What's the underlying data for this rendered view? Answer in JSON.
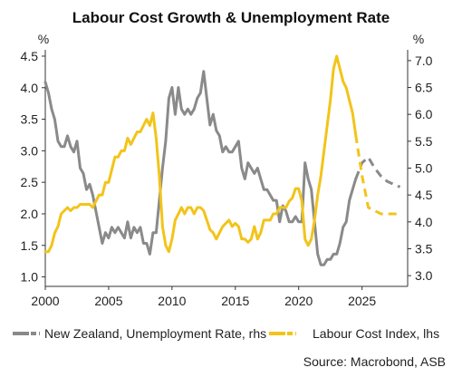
{
  "chart_data": {
    "type": "line",
    "title": "Labour Cost Growth & Unemployment Rate",
    "source": "Source: Macrobond, ASB",
    "left_axis": {
      "unit": "%",
      "ylim": [
        0.85,
        4.6
      ],
      "ticks": [
        "1.0",
        "1.5",
        "2.0",
        "2.5",
        "3.0",
        "3.5",
        "4.0",
        "4.5"
      ]
    },
    "right_axis": {
      "unit": "%",
      "ylim": [
        2.8,
        7.2
      ],
      "ticks": [
        "3.0",
        "3.5",
        "4.0",
        "4.5",
        "5.0",
        "5.5",
        "6.0",
        "6.5",
        "7.0"
      ]
    },
    "x_axis": {
      "xlim": [
        2000,
        2028.6
      ],
      "ticks": [
        "2000",
        "2005",
        "2010",
        "2015",
        "2020",
        "2025"
      ]
    },
    "grid": false,
    "legend_position": "bottom",
    "colors": {
      "unemployment": "#8a8a8a",
      "labour_cost": "#f2c41a"
    },
    "series": [
      {
        "name": "New Zealand, Unemployment Rate, rhs",
        "axis": "right",
        "color": "#8a8a8a",
        "actual": [
          [
            2000.0,
            6.6
          ],
          [
            2000.25,
            6.4
          ],
          [
            2000.5,
            6.1
          ],
          [
            2000.75,
            5.9
          ],
          [
            2001.0,
            5.5
          ],
          [
            2001.25,
            5.4
          ],
          [
            2001.5,
            5.4
          ],
          [
            2001.75,
            5.6
          ],
          [
            2002.0,
            5.4
          ],
          [
            2002.25,
            5.3
          ],
          [
            2002.5,
            5.5
          ],
          [
            2002.75,
            5.0
          ],
          [
            2003.0,
            4.9
          ],
          [
            2003.25,
            4.6
          ],
          [
            2003.5,
            4.7
          ],
          [
            2003.75,
            4.5
          ],
          [
            2004.0,
            4.2
          ],
          [
            2004.25,
            3.9
          ],
          [
            2004.5,
            3.6
          ],
          [
            2004.75,
            3.8
          ],
          [
            2005.0,
            3.7
          ],
          [
            2005.25,
            3.9
          ],
          [
            2005.5,
            3.8
          ],
          [
            2005.75,
            3.9
          ],
          [
            2006.0,
            3.8
          ],
          [
            2006.25,
            3.7
          ],
          [
            2006.5,
            4.0
          ],
          [
            2006.75,
            3.7
          ],
          [
            2007.0,
            3.9
          ],
          [
            2007.25,
            3.8
          ],
          [
            2007.5,
            3.9
          ],
          [
            2007.75,
            3.6
          ],
          [
            2008.0,
            3.6
          ],
          [
            2008.25,
            3.4
          ],
          [
            2008.5,
            3.8
          ],
          [
            2008.75,
            3.8
          ],
          [
            2009.0,
            4.4
          ],
          [
            2009.25,
            5.0
          ],
          [
            2009.5,
            5.5
          ],
          [
            2009.75,
            6.3
          ],
          [
            2010.0,
            6.5
          ],
          [
            2010.25,
            6.0
          ],
          [
            2010.5,
            6.5
          ],
          [
            2010.75,
            6.1
          ],
          [
            2011.0,
            6.0
          ],
          [
            2011.25,
            6.1
          ],
          [
            2011.5,
            6.0
          ],
          [
            2011.75,
            6.1
          ],
          [
            2012.0,
            6.3
          ],
          [
            2012.25,
            6.4
          ],
          [
            2012.5,
            6.8
          ],
          [
            2012.75,
            6.3
          ],
          [
            2013.0,
            5.8
          ],
          [
            2013.25,
            6.0
          ],
          [
            2013.5,
            5.7
          ],
          [
            2013.75,
            5.6
          ],
          [
            2014.0,
            5.3
          ],
          [
            2014.25,
            5.4
          ],
          [
            2014.5,
            5.3
          ],
          [
            2014.75,
            5.3
          ],
          [
            2015.0,
            5.4
          ],
          [
            2015.25,
            5.5
          ],
          [
            2015.5,
            5.0
          ],
          [
            2015.75,
            4.8
          ],
          [
            2016.0,
            5.1
          ],
          [
            2016.25,
            5.0
          ],
          [
            2016.5,
            4.9
          ],
          [
            2016.75,
            5.0
          ],
          [
            2017.0,
            4.8
          ],
          [
            2017.25,
            4.6
          ],
          [
            2017.5,
            4.6
          ],
          [
            2017.75,
            4.5
          ],
          [
            2018.0,
            4.4
          ],
          [
            2018.25,
            4.4
          ],
          [
            2018.5,
            4.0
          ],
          [
            2018.75,
            4.3
          ],
          [
            2019.0,
            4.2
          ],
          [
            2019.25,
            4.0
          ],
          [
            2019.5,
            4.0
          ],
          [
            2019.75,
            4.1
          ],
          [
            2020.0,
            4.0
          ],
          [
            2020.25,
            4.0
          ],
          [
            2020.5,
            5.1
          ],
          [
            2020.75,
            4.8
          ],
          [
            2021.0,
            4.6
          ],
          [
            2021.25,
            4.0
          ],
          [
            2021.5,
            3.4
          ],
          [
            2021.75,
            3.2
          ],
          [
            2022.0,
            3.2
          ],
          [
            2022.25,
            3.3
          ],
          [
            2022.5,
            3.3
          ],
          [
            2022.75,
            3.4
          ],
          [
            2023.0,
            3.4
          ],
          [
            2023.25,
            3.6
          ],
          [
            2023.5,
            3.9
          ],
          [
            2023.75,
            4.0
          ],
          [
            2024.0,
            4.4
          ],
          [
            2024.25,
            4.6
          ],
          [
            2024.5,
            4.8
          ]
        ],
        "forecast": [
          [
            2024.5,
            4.8
          ],
          [
            2025.0,
            5.1
          ],
          [
            2025.5,
            5.2
          ],
          [
            2026.0,
            5.0
          ],
          [
            2026.5,
            4.85
          ],
          [
            2027.0,
            4.75
          ],
          [
            2027.5,
            4.7
          ],
          [
            2028.0,
            4.65
          ]
        ]
      },
      {
        "name": "Labour Cost Index, lhs",
        "axis": "left",
        "color": "#f2c41a",
        "actual": [
          [
            2000.0,
            1.4
          ],
          [
            2000.25,
            1.4
          ],
          [
            2000.5,
            1.5
          ],
          [
            2000.75,
            1.7
          ],
          [
            2001.0,
            1.8
          ],
          [
            2001.25,
            2.0
          ],
          [
            2001.5,
            2.05
          ],
          [
            2001.75,
            2.1
          ],
          [
            2002.0,
            2.05
          ],
          [
            2002.25,
            2.1
          ],
          [
            2002.5,
            2.1
          ],
          [
            2002.75,
            2.15
          ],
          [
            2003.0,
            2.15
          ],
          [
            2003.25,
            2.15
          ],
          [
            2003.5,
            2.15
          ],
          [
            2003.75,
            2.1
          ],
          [
            2004.0,
            2.2
          ],
          [
            2004.25,
            2.3
          ],
          [
            2004.5,
            2.3
          ],
          [
            2004.75,
            2.5
          ],
          [
            2005.0,
            2.5
          ],
          [
            2005.25,
            2.7
          ],
          [
            2005.5,
            2.9
          ],
          [
            2005.75,
            2.9
          ],
          [
            2006.0,
            3.0
          ],
          [
            2006.25,
            3.0
          ],
          [
            2006.5,
            3.2
          ],
          [
            2006.75,
            3.1
          ],
          [
            2007.0,
            3.2
          ],
          [
            2007.25,
            3.3
          ],
          [
            2007.5,
            3.3
          ],
          [
            2007.75,
            3.4
          ],
          [
            2008.0,
            3.5
          ],
          [
            2008.25,
            3.4
          ],
          [
            2008.5,
            3.6
          ],
          [
            2008.75,
            3.2
          ],
          [
            2009.0,
            2.6
          ],
          [
            2009.25,
            1.8
          ],
          [
            2009.5,
            1.5
          ],
          [
            2009.75,
            1.4
          ],
          [
            2010.0,
            1.6
          ],
          [
            2010.25,
            1.9
          ],
          [
            2010.5,
            2.0
          ],
          [
            2010.75,
            2.1
          ],
          [
            2011.0,
            2.0
          ],
          [
            2011.25,
            2.1
          ],
          [
            2011.5,
            2.1
          ],
          [
            2011.75,
            2.0
          ],
          [
            2012.0,
            2.1
          ],
          [
            2012.25,
            2.1
          ],
          [
            2012.5,
            2.05
          ],
          [
            2012.75,
            1.9
          ],
          [
            2013.0,
            1.75
          ],
          [
            2013.25,
            1.7
          ],
          [
            2013.5,
            1.6
          ],
          [
            2013.75,
            1.7
          ],
          [
            2014.0,
            1.8
          ],
          [
            2014.25,
            1.85
          ],
          [
            2014.5,
            1.9
          ],
          [
            2014.75,
            1.8
          ],
          [
            2015.0,
            1.85
          ],
          [
            2015.25,
            1.8
          ],
          [
            2015.5,
            1.6
          ],
          [
            2015.75,
            1.6
          ],
          [
            2016.0,
            1.55
          ],
          [
            2016.25,
            1.6
          ],
          [
            2016.5,
            1.8
          ],
          [
            2016.75,
            1.6
          ],
          [
            2017.0,
            1.7
          ],
          [
            2017.25,
            1.9
          ],
          [
            2017.5,
            1.9
          ],
          [
            2017.75,
            1.9
          ],
          [
            2018.0,
            2.0
          ],
          [
            2018.25,
            2.0
          ],
          [
            2018.5,
            2.1
          ],
          [
            2018.75,
            2.1
          ],
          [
            2019.0,
            2.1
          ],
          [
            2019.25,
            2.2
          ],
          [
            2019.5,
            2.25
          ],
          [
            2019.75,
            2.4
          ],
          [
            2020.0,
            2.4
          ],
          [
            2020.25,
            2.2
          ],
          [
            2020.5,
            1.6
          ],
          [
            2020.75,
            1.5
          ],
          [
            2021.0,
            1.6
          ],
          [
            2021.25,
            1.9
          ],
          [
            2021.5,
            2.3
          ],
          [
            2021.75,
            2.6
          ],
          [
            2022.0,
            3.0
          ],
          [
            2022.25,
            3.4
          ],
          [
            2022.5,
            3.8
          ],
          [
            2022.75,
            4.3
          ],
          [
            2023.0,
            4.5
          ],
          [
            2023.25,
            4.3
          ],
          [
            2023.5,
            4.1
          ],
          [
            2023.75,
            4.0
          ],
          [
            2024.0,
            3.8
          ],
          [
            2024.25,
            3.6
          ],
          [
            2024.5,
            3.25
          ]
        ],
        "forecast": [
          [
            2024.5,
            3.25
          ],
          [
            2025.0,
            2.6
          ],
          [
            2025.5,
            2.1
          ],
          [
            2026.0,
            2.05
          ],
          [
            2026.5,
            2.0
          ],
          [
            2027.0,
            2.0
          ],
          [
            2027.5,
            2.0
          ],
          [
            2028.0,
            2.0
          ]
        ]
      }
    ]
  }
}
